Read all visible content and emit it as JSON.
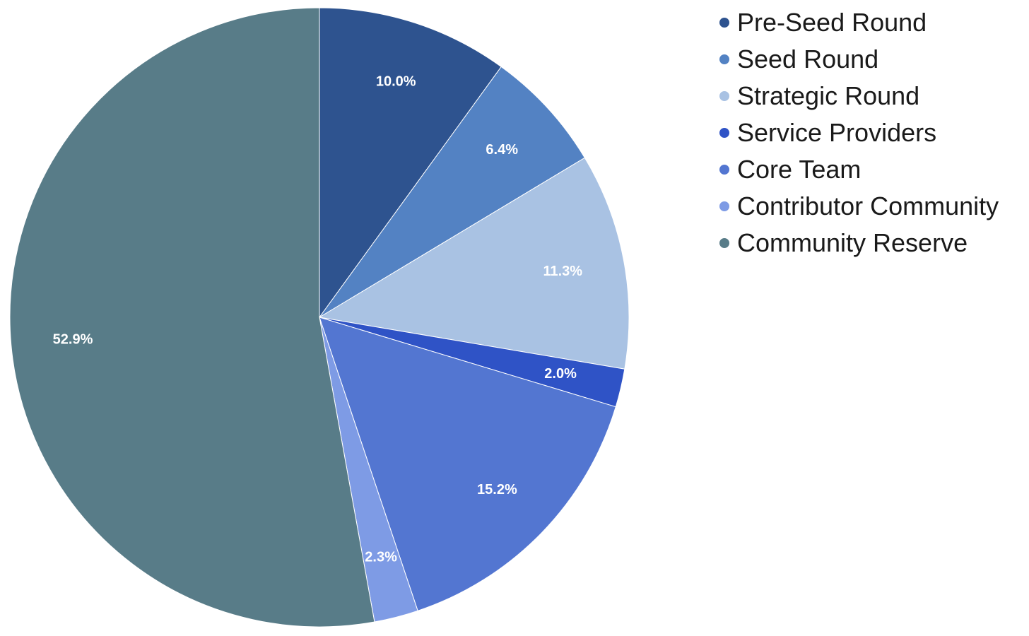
{
  "chart_data": {
    "type": "pie",
    "title": "",
    "legend_position": "right",
    "start_angle": "top-center, clockwise",
    "categories": [
      "Pre-Seed Round",
      "Seed Round",
      "Strategic Round",
      "Service Providers",
      "Core Team",
      "Contributor Community",
      "Community Reserve"
    ],
    "values": [
      10.0,
      6.4,
      11.3,
      2.0,
      15.2,
      2.3,
      52.9
    ],
    "labels": [
      "10.0%",
      "6.4%",
      "11.3%",
      "2.0%",
      "15.2%",
      "2.3%",
      "52.9%"
    ],
    "colors": [
      "#2e538f",
      "#5382c3",
      "#a9c2e3",
      "#2f53c6",
      "#5376d1",
      "#7e9be5",
      "#587c88"
    ]
  }
}
